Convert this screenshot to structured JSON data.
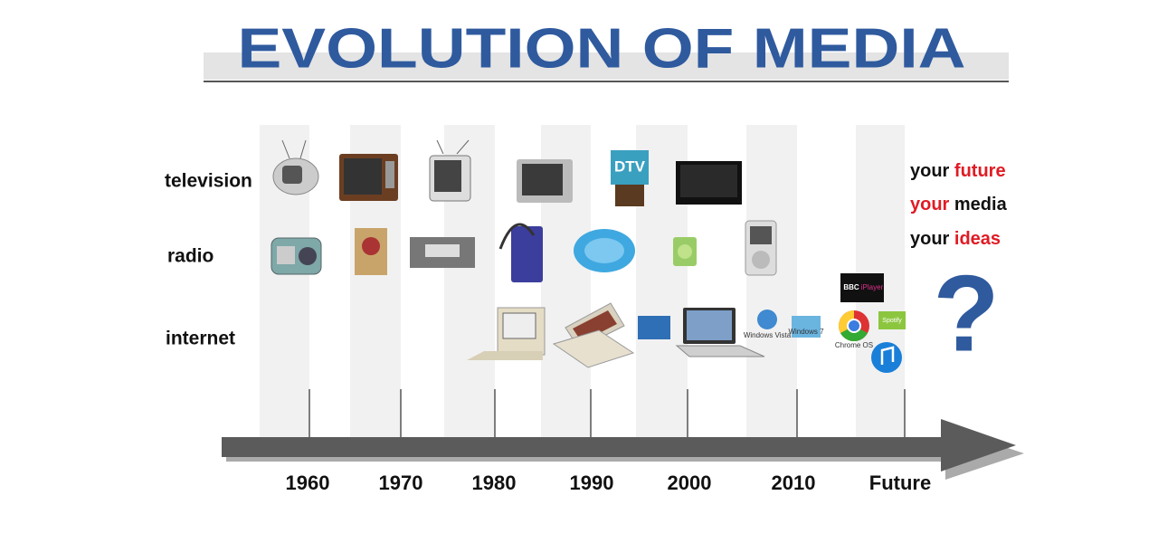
{
  "header": {
    "title": "EVOLUTION OF MEDIA"
  },
  "rows": [
    "television",
    "radio",
    "internet"
  ],
  "timeline": [
    "1960",
    "1970",
    "1980",
    "1990",
    "2000",
    "2010",
    "Future"
  ],
  "tagline": [
    [
      {
        "text": "your ",
        "highlight": false
      },
      {
        "text": "future",
        "highlight": true
      }
    ],
    [
      {
        "text": "your",
        "highlight": true
      },
      {
        "text": " media",
        "highlight": false
      }
    ],
    [
      {
        "text": "your ",
        "highlight": false
      },
      {
        "text": "ideas",
        "highlight": true
      }
    ]
  ],
  "highlight_color": "#e01b24",
  "question": "?",
  "icon_labels": {
    "dtv": "DTV",
    "windows_vista": "Windows Vista",
    "windows_7": "Windows 7",
    "chrome_os": "Chrome OS",
    "spotify": "Spotify",
    "bbc": "BBC",
    "iplayer": "iPlayer"
  }
}
